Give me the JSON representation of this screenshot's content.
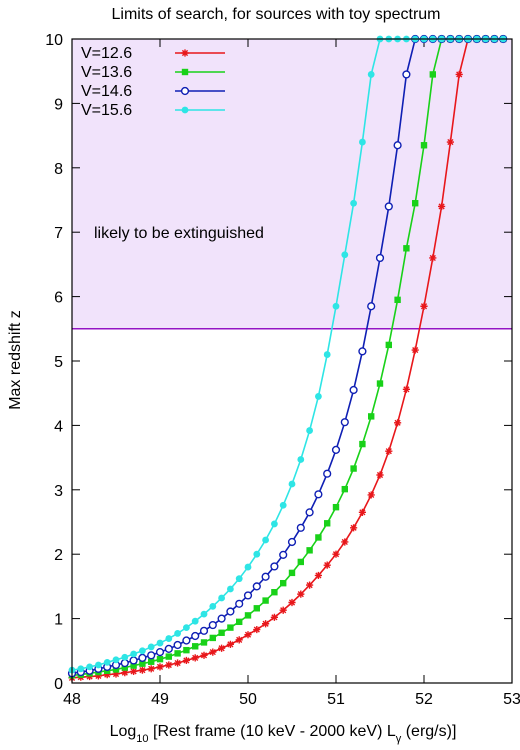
{
  "chart_data": {
    "type": "line",
    "title": "Limits of search, for sources with toy spectrum",
    "xlabel": {
      "prefix": "Log",
      "sub": "10",
      "middle": " [Rest frame (10 keV - 2000 keV)  L",
      "sub2": "γ",
      "suffix": " (erg/s)]"
    },
    "ylabel": "Max redshift z",
    "xlim": [
      48,
      53
    ],
    "ylim": [
      0,
      10
    ],
    "xticks": [
      48,
      49,
      50,
      51,
      52,
      53
    ],
    "yticks": [
      0,
      1,
      2,
      3,
      4,
      5,
      6,
      7,
      8,
      9,
      10
    ],
    "legend_position": "top-left",
    "region": {
      "label": "likely to be extinguished",
      "y_range": [
        5.5,
        10
      ],
      "fill_color": "#f1e3fb",
      "edge_color": "#9414c4",
      "label_color": "#9414c4"
    },
    "series": [
      {
        "name": "V=12.6",
        "color": "#e8171b",
        "marker": "star",
        "x": [
          48.0,
          48.1,
          48.2,
          48.3,
          48.4,
          48.5,
          48.6,
          48.7,
          48.8,
          48.9,
          49.0,
          49.1,
          49.2,
          49.3,
          49.4,
          49.5,
          49.6,
          49.7,
          49.8,
          49.9,
          50.0,
          50.1,
          50.2,
          50.3,
          50.4,
          50.5,
          50.6,
          50.7,
          50.8,
          50.9,
          51.0,
          51.1,
          51.2,
          51.3,
          51.4,
          51.5,
          51.6,
          51.7,
          51.8,
          51.9,
          52.0,
          52.1,
          52.2,
          52.3,
          52.4,
          52.5,
          52.6,
          52.7,
          52.8,
          52.9
        ],
        "y": [
          0.08,
          0.09,
          0.1,
          0.11,
          0.13,
          0.14,
          0.16,
          0.18,
          0.2,
          0.22,
          0.25,
          0.28,
          0.31,
          0.35,
          0.39,
          0.43,
          0.48,
          0.54,
          0.6,
          0.67,
          0.75,
          0.83,
          0.92,
          1.02,
          1.13,
          1.25,
          1.38,
          1.52,
          1.67,
          1.83,
          2.0,
          2.19,
          2.41,
          2.65,
          2.92,
          3.23,
          3.6,
          4.04,
          4.56,
          5.17,
          5.85,
          6.6,
          7.4,
          8.4,
          9.45,
          10,
          10,
          10,
          10,
          10
        ]
      },
      {
        "name": "V=13.6",
        "color": "#19d119",
        "marker": "square",
        "x": [
          48.0,
          48.1,
          48.2,
          48.3,
          48.4,
          48.5,
          48.6,
          48.7,
          48.8,
          48.9,
          49.0,
          49.1,
          49.2,
          49.3,
          49.4,
          49.5,
          49.6,
          49.7,
          49.8,
          49.9,
          50.0,
          50.1,
          50.2,
          50.3,
          50.4,
          50.5,
          50.6,
          50.7,
          50.8,
          50.9,
          51.0,
          51.1,
          51.2,
          51.3,
          51.4,
          51.5,
          51.6,
          51.7,
          51.8,
          51.9,
          52.0,
          52.1,
          52.2,
          52.3,
          52.4,
          52.5,
          52.6,
          52.7,
          52.8,
          52.9
        ],
        "y": [
          0.12,
          0.13,
          0.15,
          0.17,
          0.19,
          0.21,
          0.24,
          0.27,
          0.3,
          0.33,
          0.37,
          0.41,
          0.46,
          0.51,
          0.57,
          0.63,
          0.7,
          0.78,
          0.86,
          0.95,
          1.05,
          1.16,
          1.28,
          1.41,
          1.55,
          1.71,
          1.88,
          2.06,
          2.26,
          2.48,
          2.73,
          3.01,
          3.33,
          3.71,
          4.14,
          4.65,
          5.25,
          5.95,
          6.75,
          7.45,
          8.35,
          9.45,
          10,
          10,
          10,
          10,
          10,
          10,
          10,
          10
        ]
      },
      {
        "name": "V=14.6",
        "color": "#0f1fb4",
        "marker": "circle-open",
        "x": [
          48.0,
          48.1,
          48.2,
          48.3,
          48.4,
          48.5,
          48.6,
          48.7,
          48.8,
          48.9,
          49.0,
          49.1,
          49.2,
          49.3,
          49.4,
          49.5,
          49.6,
          49.7,
          49.8,
          49.9,
          50.0,
          50.1,
          50.2,
          50.3,
          50.4,
          50.5,
          50.6,
          50.7,
          50.8,
          50.9,
          51.0,
          51.1,
          51.2,
          51.3,
          51.4,
          51.5,
          51.6,
          51.7,
          51.8,
          51.9,
          52.0,
          52.1,
          52.2,
          52.3,
          52.4,
          52.5,
          52.6,
          52.7,
          52.8,
          52.9
        ],
        "y": [
          0.15,
          0.17,
          0.19,
          0.22,
          0.25,
          0.28,
          0.31,
          0.35,
          0.39,
          0.43,
          0.48,
          0.53,
          0.59,
          0.66,
          0.73,
          0.81,
          0.9,
          1.0,
          1.11,
          1.23,
          1.36,
          1.5,
          1.65,
          1.81,
          1.99,
          2.19,
          2.41,
          2.65,
          2.93,
          3.25,
          3.62,
          4.05,
          4.55,
          5.15,
          5.85,
          6.6,
          7.4,
          8.35,
          9.45,
          10,
          10,
          10,
          10,
          10,
          10,
          10,
          10,
          10,
          10,
          10
        ]
      },
      {
        "name": "V=15.6",
        "color": "#2ee5e5",
        "marker": "circle-filled",
        "x": [
          48.0,
          48.1,
          48.2,
          48.3,
          48.4,
          48.5,
          48.6,
          48.7,
          48.8,
          48.9,
          49.0,
          49.1,
          49.2,
          49.3,
          49.4,
          49.5,
          49.6,
          49.7,
          49.8,
          49.9,
          50.0,
          50.1,
          50.2,
          50.3,
          50.4,
          50.5,
          50.6,
          50.7,
          50.8,
          50.9,
          51.0,
          51.1,
          51.2,
          51.3,
          51.4,
          51.5,
          51.6,
          51.7,
          51.8,
          51.9,
          52.0,
          52.1,
          52.2,
          52.3,
          52.4,
          52.5,
          52.6,
          52.7,
          52.8,
          52.9
        ],
        "y": [
          0.2,
          0.22,
          0.25,
          0.28,
          0.32,
          0.36,
          0.4,
          0.45,
          0.5,
          0.56,
          0.62,
          0.69,
          0.77,
          0.86,
          0.96,
          1.07,
          1.19,
          1.32,
          1.46,
          1.62,
          1.8,
          2.0,
          2.22,
          2.47,
          2.76,
          3.09,
          3.47,
          3.92,
          4.45,
          5.1,
          5.85,
          6.65,
          7.45,
          8.4,
          9.45,
          10,
          10,
          10,
          10,
          10,
          10,
          10,
          10,
          10,
          10,
          10,
          10,
          10,
          10,
          10
        ]
      }
    ]
  }
}
